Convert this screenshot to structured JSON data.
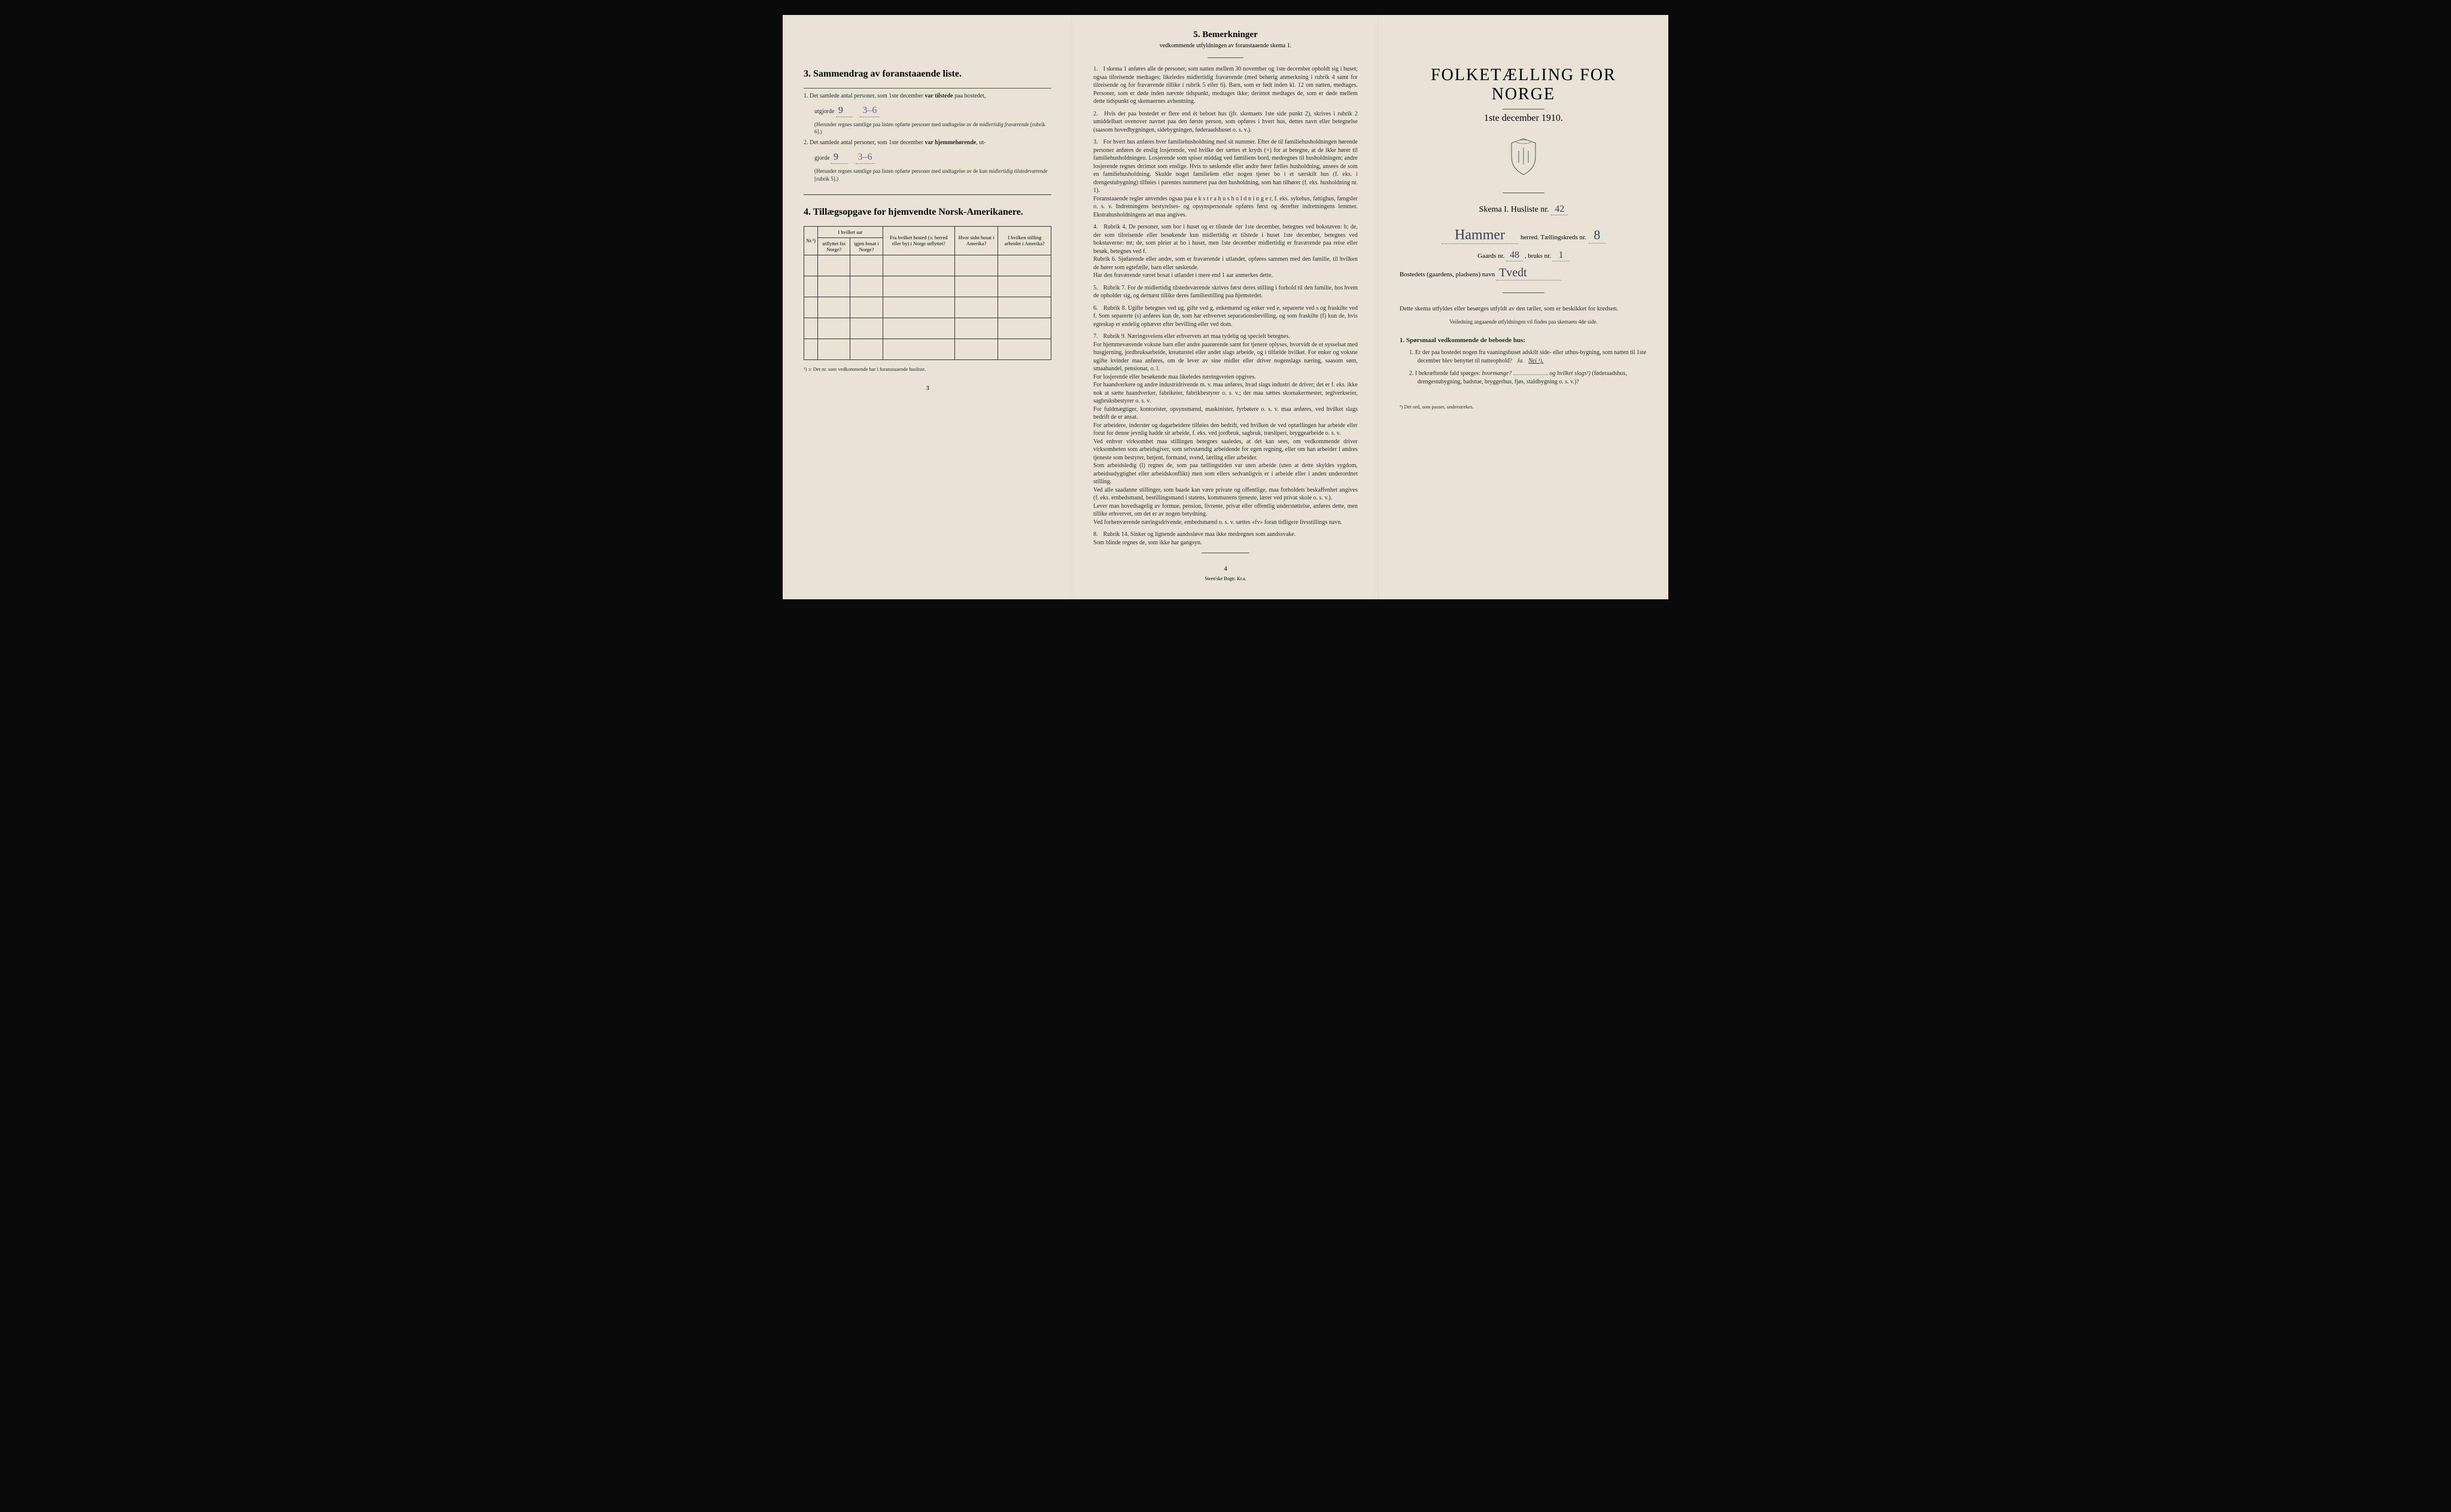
{
  "page_left": {
    "sec3_title": "3.   Sammendrag av foranstaaende liste.",
    "line1_pre": "1.  Det samlede antal personer, som 1ste december",
    "line1_bold": "var tilstede",
    "line1_post": "paa bostedet,",
    "utgjorde": "utgjorde",
    "val1": "9",
    "val1_note": "3–6",
    "line1_note": "(Herunder regnes samtlige paa listen opførte personer med undtagelse av de",
    "line1_note_italic": "midlertidig fraværende",
    "line1_note_end": "[rubrik 6].)",
    "line2_pre": "2.  Det samlede antal personer, som 1ste december",
    "line2_bold": "var hjemmehørende",
    "line2_post": ", ut-",
    "gjorde": "gjorde",
    "val2": "9",
    "val2_note": "3–6",
    "line2_note": "(Herunder regnes samtlige paa listen opførte personer med undtagelse av de kun",
    "line2_note_italic": "midlertidig tilstedeværende",
    "line2_note_end": "[rubrik 5].)",
    "sec4_title": "4.   Tillægsopgave for hjemvendte Norsk-Amerikanere.",
    "tbl": {
      "h1": "Nr.¹)",
      "h2a": "I hvilket aar",
      "h2b": "utflyttet fra Norge?",
      "h2c": "igjen bosat i Norge?",
      "h3": "Fra hvilket bosted (ɔ: herred eller by) i Norge utflyttet?",
      "h4": "Hvor sidst bosat i Amerika?",
      "h5": "I hvilken stilling arbeidet i Amerika?"
    },
    "foot": "¹) ɔ: Det nr. som vedkommende har i foranstaaende husliste.",
    "pagenum": "3"
  },
  "page_middle": {
    "sec5_title": "5.   Bemerkninger",
    "sec5_sub": "vedkommende utfyldningen av foranstaaende skema 1.",
    "notes": [
      "I skema 1 anføres alle de personer, som natten mellem 30 november og 1ste december opholdt sig i huset; ogsaa tilreisende medtages; likeledes midlertidig fraværende (med behørig anmerkning i rubrik 4 samt for tilreisende og for fraværende tillike i rubrik 5 eller 6). Barn, som er født inden kl. 12 om natten, medtages. Personer, som er døde inden nævnte tidspunkt, medtages ikke; derimot medtages de, som er døde mellem dette tidspunkt og skemaernes avhentning.",
      "Hvis der paa bostedet er flere end ét beboet hus (jfr. skemaets 1ste side punkt 2), skrives i rubrik 2 umiddelbart ovenover navnet paa den første person, som opføres i hvert hus, dettes navn eller betegnelse (saasom hovedbygningen, sidebygningen, føderaadshuset o. s. v.).",
      "For hvert hus anføres hver familiehusholdning med sit nummer. Efter de til familiehusholdningen hørende personer anføres de enslig losjerende, ved hvilke der sættes et kryds (×) for at betegne, at de ikke hører til familiehusholdningen. Losjerende som spiser middag ved familiens bord, medregnes til husholdningen; andre losjerende regnes derimot som enslige. Hvis to søskende eller andre fører fælles husholdning, ansees de som en familiehusholdning. Skulde noget familielem eller nogen tjener bo i et særskilt hus (f. eks. i drengestubygning) tilføies i parentes nummeret paa den husholdning, som han tilhører (f. eks. husholdning nr. 1).\n    Foranstaaende regler anvendes ogsaa paa e k s t r a h u s h o l d n i n g e r, f. eks. sykehus, fattighus, fængsler o. s. v. Indretningens bestyrelses- og opsynspersonale opføres først og derefter indretningens lemmer. Ekstrahusholdningens art maa angives.",
      "Rubrik 4. De personer, som bor i huset og er tilstede der 1ste december, betegnes ved bokstaven: b; de, der som tilreisende eller besøkende kun midlertidig er tilstede i huset 1ste december, betegnes ved bokstaverne: mt; de, som pleier at bo i huset, men 1ste december midlertidig er fraværende paa reise eller besøk, betegnes ved f.\n    Rubrik 6. Sjøfarende eller andre, som er fraværende i utlandet, opføres sammen med den familie, til hvilken de hører som egtefælle, barn eller søskende.\n    Har den fraværende været bosat i utlandet i mere end 1 aar anmerkes dette.",
      "Rubrik 7. For de midlertidig tilstedeværende skrives først deres stilling i forhold til den familie, hos hvem de opholder sig, og dernæst tillike deres familiestilling paa hjemstedet.",
      "Rubrik 8. Ugifte betegnes ved ug, gifte ved g, enkemænd og enker ved e, separerte ved s og fraskilte ved f. Som separerte (s) anføres kun de, som har erhvervet separationsbevilling, og som fraskilte (f) kun de, hvis egteskap er endelig ophævet efter bevilling eller ved dom.",
      "Rubrik 9. Næringsveiens eller erhvervets art maa tydelig og specielt betegnes.\n    For hjemmeværende voksne barn eller andre paarørende samt for tjenere oplyses, hvorvidt de er sysselsat med husgjerning, jordbruksarbeide, kreaturstel eller andet slags arbeide, og i tilfælde hvilket. For enker og voksne ugifte kvinder maa anføres, om de lever av sine midler eller driver nogenslags næring, saasom søm, smaahandel, pensionat, o. l.\n    For losjerende eller besøkende maa likeledes næringsveien opgives.\n    For haandverkere og andre industridrivende m. v. maa anføres, hvad slags industri de driver; det er f. eks. ikke nok at sætte haandverker, fabrikeier, fabrikbestyrer o. s. v.; der maa sættes skomakermester, teglverkseier, sagbruksbestyrer o. s. v.\n    For fuldmægtiger, kontorister, opsynsmænd, maskinister, fyrbøtere o. s. v. maa anføres, ved hvilket slags bedrift de er ansat.\n    For arbeidere, inderster og dagarbeidere tilføies den bedrift, ved hvilken de ved optællingen har arbeide eller forut for denne jevnlig hadde sit arbeide, f. eks. ved jordbruk, sagbruk, træsliperi, bryggearbeide o. s. v.\n    Ved enhver virksomhet maa stillingen betegnes saaledes, at det kan sees, om vedkommende driver virksomheten som arbeidsgiver, som selvstændig arbeidende for egen regning, eller om han arbeider i andres tjeneste som bestyrer, betjent, formand, svend, lærling eller arbeider.\n    Som arbeidsledig (l) regnes de, som paa tællingstiden var uten arbeide (uten at dette skyldes sygdom, arbeidsudygtighet eller arbeidskonflikt) men som ellers sedvanligvis er i arbeide eller i anden underordnet stilling.\n    Ved alle saadanne stillinger, som baade kan være private og offentlige, maa forholdets beskaffenhet angives (f. eks. embedsmand, bestillingsmand i statens, kommunens tjeneste, lærer ved privat skole o. s. v.).\n    Lever man hovedsagelig av formue, pension, livrente, privat eller offentlig understøttelse, anføres dette, men tillike erhvervet, om det er av nogen betydning.\n    Ved forhenværende næringsdrivende, embedsmænd o. s. v. sættes «fv» foran tidligere livsstillings navn.",
      "Rubrik 14. Sinker og lignende aandssløve maa ikke medregnes som aandssvake.\n    Som blinde regnes de, som ikke har gangsyn."
    ],
    "pagenum": "4",
    "printer": "Steen'ske Bogtr.  Kr.a."
  },
  "page_right": {
    "title": "FOLKETÆLLING FOR NORGE",
    "date": "1ste december 1910.",
    "skema": "Skema I.   Husliste nr.",
    "husliste_nr": "42",
    "herred_name": "Hammer",
    "herred_label": "herred.   Tællingskreds nr.",
    "kreds_nr": "8",
    "gaards_label": "Gaards nr.",
    "gaards_nr": "48",
    "bruks_label": ", bruks nr.",
    "bruks_nr": "1",
    "bosted_label": "Bostedets (gaardens, pladsens) navn",
    "bosted_name": "Tvedt",
    "instr1": "Dette skema utfyldes eller besørges utfyldt av den tæller, som er beskikket for kredsen.",
    "instr2": "Veiledning angaaende utfyldningen vil findes paa skemaets 4de side.",
    "q_head": "1. Spørsmaal vedkommende de beboede hus:",
    "q1": "1.  Er der paa bostedet nogen fra vaaningshuset adskilt side- eller uthus-bygning, som natten til 1ste december blev benyttet til natteophold?",
    "q1_ja": "Ja.",
    "q1_nei": "Nei ¹).",
    "q2": "2.  I bekræftende fald spørges:",
    "q2_hvor": "hvormange?",
    "q2_og": "og hvilket slags¹)",
    "q2_paren": "(føderaadshus, drengestubygning, badstue, bryggerhus, fjøs, staldbygning o. s. v.)?",
    "footnote": "¹) Det ord, som passer, understrekes."
  }
}
